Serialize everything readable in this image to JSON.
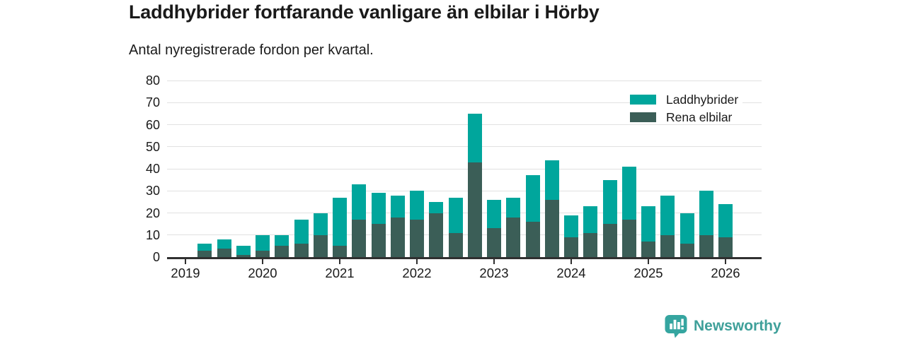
{
  "header": {
    "title": "Laddhybrider fortfarande vanligare än elbilar i Hörby",
    "subtitle": "Antal nyregistrerade fordon per kvartal."
  },
  "chart_data": {
    "type": "bar",
    "stacked": true,
    "title": "Laddhybrider fortfarande vanligare än elbilar i Hörby",
    "subtitle": "Antal nyregistrerade fordon per kvartal.",
    "x": [
      "2019 Q1",
      "2019 Q2",
      "2019 Q3",
      "2019 Q4",
      "2020 Q1",
      "2020 Q2",
      "2020 Q3",
      "2020 Q4",
      "2021 Q1",
      "2021 Q2",
      "2021 Q3",
      "2021 Q4",
      "2022 Q1",
      "2022 Q2",
      "2022 Q3",
      "2022 Q4",
      "2023 Q1",
      "2023 Q2",
      "2023 Q3",
      "2023 Q4",
      "2024 Q1",
      "2024 Q2",
      "2024 Q3",
      "2024 Q4",
      "2025 Q1",
      "2025 Q2",
      "2025 Q3",
      "2025 Q4",
      "2026 Q1"
    ],
    "series": [
      {
        "name": "Laddhybrider",
        "color": "#00a69c",
        "values": [
          0,
          3,
          4,
          4,
          7,
          5,
          11,
          10,
          22,
          16,
          14,
          10,
          13,
          5,
          16,
          22,
          13,
          9,
          21,
          18,
          10,
          12,
          20,
          24,
          16,
          18,
          14,
          20,
          15
        ]
      },
      {
        "name": "Rena elbilar",
        "color": "#3b5e57",
        "values": [
          0,
          3,
          4,
          1,
          3,
          5,
          6,
          10,
          5,
          17,
          15,
          18,
          17,
          20,
          11,
          43,
          13,
          18,
          16,
          26,
          9,
          11,
          15,
          17,
          7,
          10,
          6,
          10,
          9
        ]
      }
    ],
    "totals": [
      0,
      6,
      8,
      5,
      10,
      10,
      17,
      20,
      27,
      33,
      29,
      28,
      30,
      25,
      27,
      65,
      26,
      27,
      37,
      44,
      19,
      23,
      35,
      41,
      23,
      28,
      20,
      30,
      24
    ],
    "ylim": [
      0,
      80
    ],
    "yticks": [
      0,
      10,
      20,
      30,
      40,
      50,
      60,
      70,
      80
    ],
    "year_labels": [
      "2019",
      "2020",
      "2021",
      "2022",
      "2023",
      "2024",
      "2025",
      "2026"
    ],
    "grid": "horizontal",
    "legend_position": "top-right"
  },
  "footer": {
    "brand": "Newsworthy",
    "brand_color": "#3fa09a",
    "logo_color": "#35a5a0"
  }
}
